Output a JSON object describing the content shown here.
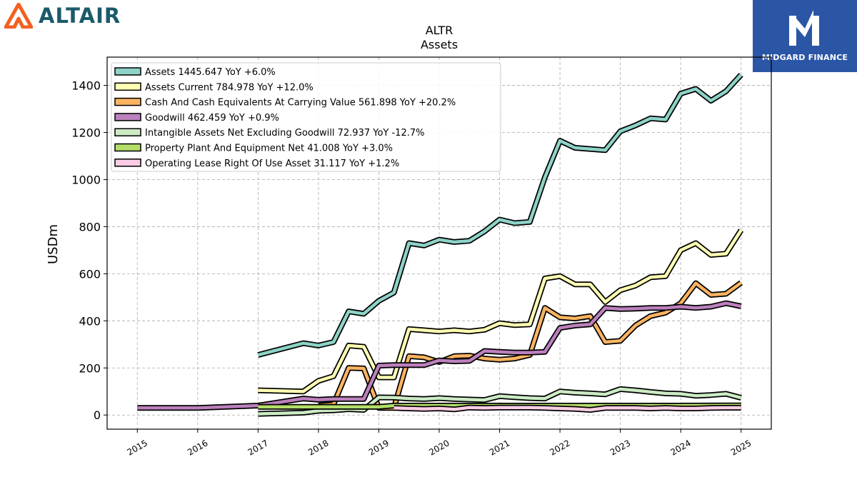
{
  "branding": {
    "logo_text": "ALTAIR",
    "logo_icon": "altair-triangle-icon",
    "badge_text": "MIDGARD FINANCE",
    "badge_icon": "midgard-finance-logo-icon",
    "logo_color": "#1b5a6b",
    "icon_color": "#f26122",
    "badge_color": "#2b56a6"
  },
  "chart_data": {
    "type": "line",
    "title": "ALTR",
    "subtitle": "Assets",
    "ylabel": "USDm",
    "xlabel": "",
    "ylim": [
      -60,
      1520
    ],
    "xlim": [
      2014.5,
      2025.5
    ],
    "yticks": [
      0,
      200,
      400,
      600,
      800,
      1000,
      1200,
      1400
    ],
    "xticks": [
      "2015",
      "2016",
      "2017",
      "2018",
      "2019",
      "2020",
      "2021",
      "2022",
      "2023",
      "2024",
      "2025"
    ],
    "grid": true,
    "legend_position": "top-left",
    "series": [
      {
        "name": "Assets  1445.647 YoY +6.0%",
        "color": "#8dd3c7",
        "points": [
          [
            2017.0,
            255
          ],
          [
            2017.75,
            305
          ],
          [
            2018.0,
            295
          ],
          [
            2018.25,
            310
          ],
          [
            2018.5,
            440
          ],
          [
            2018.75,
            430
          ],
          [
            2019.0,
            485
          ],
          [
            2019.25,
            520
          ],
          [
            2019.5,
            730
          ],
          [
            2019.75,
            720
          ],
          [
            2020.0,
            745
          ],
          [
            2020.25,
            735
          ],
          [
            2020.5,
            740
          ],
          [
            2020.75,
            780
          ],
          [
            2021.0,
            830
          ],
          [
            2021.25,
            815
          ],
          [
            2021.5,
            820
          ],
          [
            2021.75,
            1010
          ],
          [
            2022.0,
            1165
          ],
          [
            2022.25,
            1135
          ],
          [
            2022.5,
            1130
          ],
          [
            2022.75,
            1125
          ],
          [
            2023.0,
            1205
          ],
          [
            2023.25,
            1230
          ],
          [
            2023.5,
            1260
          ],
          [
            2023.75,
            1255
          ],
          [
            2024.0,
            1365
          ],
          [
            2024.25,
            1385
          ],
          [
            2024.5,
            1335
          ],
          [
            2024.75,
            1375
          ],
          [
            2025.0,
            1445
          ]
        ]
      },
      {
        "name": "Assets Current  784.978 YoY +12.0%",
        "color": "#ffffb3",
        "points": [
          [
            2017.0,
            105
          ],
          [
            2017.75,
            100
          ],
          [
            2018.0,
            145
          ],
          [
            2018.25,
            165
          ],
          [
            2018.5,
            295
          ],
          [
            2018.75,
            290
          ],
          [
            2019.0,
            160
          ],
          [
            2019.25,
            160
          ],
          [
            2019.5,
            365
          ],
          [
            2019.75,
            360
          ],
          [
            2020.0,
            355
          ],
          [
            2020.25,
            360
          ],
          [
            2020.5,
            355
          ],
          [
            2020.75,
            362
          ],
          [
            2021.0,
            390
          ],
          [
            2021.25,
            382
          ],
          [
            2021.5,
            385
          ],
          [
            2021.75,
            580
          ],
          [
            2022.0,
            590
          ],
          [
            2022.25,
            555
          ],
          [
            2022.5,
            555
          ],
          [
            2022.75,
            480
          ],
          [
            2023.0,
            530
          ],
          [
            2023.25,
            550
          ],
          [
            2023.5,
            585
          ],
          [
            2023.75,
            590
          ],
          [
            2024.0,
            700
          ],
          [
            2024.25,
            730
          ],
          [
            2024.5,
            680
          ],
          [
            2024.75,
            685
          ],
          [
            2025.0,
            785
          ]
        ]
      },
      {
        "name": "Cash And Cash Equivalents At Carrying Value  561.898 YoY +20.2%",
        "color": "#fdb462",
        "points": [
          [
            2018.0,
            40
          ],
          [
            2018.25,
            45
          ],
          [
            2018.5,
            200
          ],
          [
            2018.75,
            198
          ],
          [
            2019.0,
            30
          ],
          [
            2019.25,
            30
          ],
          [
            2019.5,
            250
          ],
          [
            2019.75,
            245
          ],
          [
            2020.0,
            225
          ],
          [
            2020.25,
            250
          ],
          [
            2020.5,
            252
          ],
          [
            2020.75,
            240
          ],
          [
            2021.0,
            235
          ],
          [
            2021.25,
            240
          ],
          [
            2021.5,
            255
          ],
          [
            2021.75,
            455
          ],
          [
            2022.0,
            415
          ],
          [
            2022.25,
            410
          ],
          [
            2022.5,
            420
          ],
          [
            2022.75,
            310
          ],
          [
            2023.0,
            315
          ],
          [
            2023.25,
            380
          ],
          [
            2023.5,
            420
          ],
          [
            2023.75,
            435
          ],
          [
            2024.0,
            475
          ],
          [
            2024.25,
            560
          ],
          [
            2024.5,
            510
          ],
          [
            2024.75,
            515
          ],
          [
            2025.0,
            562
          ]
        ]
      },
      {
        "name": "Goodwill  462.459 YoY +0.9%",
        "color": "#bc80bd",
        "points": [
          [
            2015.0,
            30
          ],
          [
            2016.0,
            30
          ],
          [
            2017.0,
            40
          ],
          [
            2017.75,
            70
          ],
          [
            2018.0,
            65
          ],
          [
            2018.25,
            68
          ],
          [
            2018.5,
            68
          ],
          [
            2018.75,
            68
          ],
          [
            2019.0,
            210
          ],
          [
            2019.25,
            212
          ],
          [
            2019.5,
            212
          ],
          [
            2019.75,
            212
          ],
          [
            2020.0,
            232
          ],
          [
            2020.25,
            228
          ],
          [
            2020.5,
            230
          ],
          [
            2020.75,
            272
          ],
          [
            2021.0,
            268
          ],
          [
            2021.25,
            265
          ],
          [
            2021.5,
            265
          ],
          [
            2021.75,
            268
          ],
          [
            2022.0,
            370
          ],
          [
            2022.25,
            380
          ],
          [
            2022.5,
            385
          ],
          [
            2022.75,
            455
          ],
          [
            2023.0,
            450
          ],
          [
            2023.25,
            452
          ],
          [
            2023.5,
            455
          ],
          [
            2023.75,
            455
          ],
          [
            2024.0,
            460
          ],
          [
            2024.25,
            455
          ],
          [
            2024.5,
            460
          ],
          [
            2024.75,
            475
          ],
          [
            2025.0,
            462
          ]
        ]
      },
      {
        "name": "Intangible Assets Net Excluding Goodwill  72.937 YoY -12.7%",
        "color": "#ccebc5",
        "points": [
          [
            2017.0,
            5
          ],
          [
            2017.75,
            10
          ],
          [
            2018.0,
            18
          ],
          [
            2018.25,
            20
          ],
          [
            2018.5,
            25
          ],
          [
            2018.75,
            22
          ],
          [
            2019.0,
            75
          ],
          [
            2019.25,
            74
          ],
          [
            2019.5,
            70
          ],
          [
            2019.75,
            68
          ],
          [
            2020.0,
            72
          ],
          [
            2020.25,
            68
          ],
          [
            2020.5,
            66
          ],
          [
            2020.75,
            64
          ],
          [
            2021.0,
            80
          ],
          [
            2021.25,
            76
          ],
          [
            2021.5,
            72
          ],
          [
            2021.75,
            70
          ],
          [
            2022.0,
            100
          ],
          [
            2022.25,
            95
          ],
          [
            2022.5,
            92
          ],
          [
            2022.75,
            88
          ],
          [
            2023.0,
            110
          ],
          [
            2023.25,
            105
          ],
          [
            2023.5,
            98
          ],
          [
            2023.75,
            92
          ],
          [
            2024.0,
            90
          ],
          [
            2024.25,
            82
          ],
          [
            2024.5,
            85
          ],
          [
            2024.75,
            90
          ],
          [
            2025.0,
            73
          ]
        ]
      },
      {
        "name": "Property Plant And Equipment Net  41.008 YoY +3.0%",
        "color": "#b3de69",
        "points": [
          [
            2017.0,
            35
          ],
          [
            2018.0,
            35
          ],
          [
            2019.0,
            35
          ],
          [
            2019.25,
            40
          ],
          [
            2020.0,
            40
          ],
          [
            2021.0,
            40
          ],
          [
            2022.0,
            40
          ],
          [
            2023.0,
            40
          ],
          [
            2024.0,
            40
          ],
          [
            2025.0,
            41
          ]
        ]
      },
      {
        "name": "Operating Lease Right Of Use Asset  31.117 YoY +1.2%",
        "color": "#fccde5",
        "points": [
          [
            2019.25,
            30
          ],
          [
            2019.5,
            28
          ],
          [
            2019.75,
            26
          ],
          [
            2020.0,
            28
          ],
          [
            2020.25,
            24
          ],
          [
            2020.5,
            32
          ],
          [
            2020.75,
            30
          ],
          [
            2021.0,
            32
          ],
          [
            2021.25,
            32
          ],
          [
            2021.5,
            32
          ],
          [
            2021.75,
            30
          ],
          [
            2022.0,
            28
          ],
          [
            2022.25,
            26
          ],
          [
            2022.5,
            22
          ],
          [
            2022.75,
            30
          ],
          [
            2023.0,
            30
          ],
          [
            2023.25,
            30
          ],
          [
            2023.5,
            28
          ],
          [
            2023.75,
            30
          ],
          [
            2024.0,
            28
          ],
          [
            2024.25,
            28
          ],
          [
            2024.5,
            30
          ],
          [
            2024.75,
            31
          ],
          [
            2025.0,
            31
          ]
        ]
      }
    ]
  }
}
